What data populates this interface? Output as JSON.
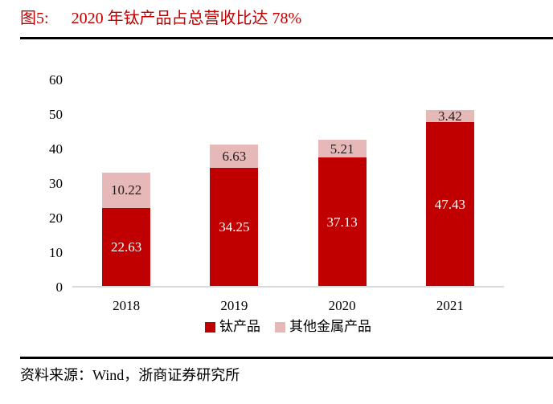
{
  "header": {
    "figure_label": "图5:",
    "title": "2020 年钛产品占总营收比达 78%",
    "accent_color": "#c00000"
  },
  "chart_data": {
    "type": "bar",
    "stacked": true,
    "categories": [
      "2018",
      "2019",
      "2020",
      "2021"
    ],
    "series": [
      {
        "key": "titanium",
        "name": "钛产品",
        "values": [
          22.63,
          34.25,
          37.13,
          47.43
        ],
        "color": "#c00000",
        "label_color": "#ffffff"
      },
      {
        "key": "other-metal",
        "name": "其他金属产品",
        "values": [
          10.22,
          6.63,
          5.21,
          3.42
        ],
        "color": "#e6b9b8",
        "label_color": "#1f1f1f"
      }
    ],
    "ylim": [
      0,
      60
    ],
    "yticks": [
      0,
      10,
      20,
      30,
      40,
      50,
      60
    ],
    "grid": false,
    "legend_position": "bottom",
    "data_labels": true,
    "baseline_color": "#d9d9d9"
  },
  "footer": {
    "source_text": "资料来源：Wind，浙商证券研究所"
  }
}
